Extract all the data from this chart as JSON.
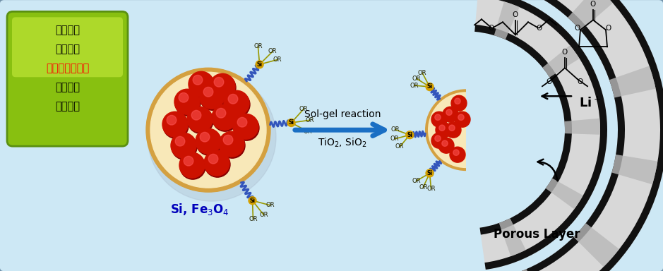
{
  "bg_color": "#cde8f5",
  "border_color": "#90b0c8",
  "box_text_lines": [
    "콴러스터",
    "임베디드",
    "마이크로캐쏘형",
    "전궹소재",
    "형성기술"
  ],
  "box_text_colors": [
    "black",
    "black",
    "red",
    "black",
    "black"
  ],
  "label_si_fe": "Si, Fe$_3$O$_4$",
  "arrow_text1": "Sol-gel reaction",
  "arrow_text2": "TiO$_2$, SiO$_2$",
  "label_porous": "Porous Layer",
  "label_li": "Li$^+$",
  "capsule_bg": "#f8e8b8",
  "capsule_border": "#d4a040",
  "ball_color": "#cc1100",
  "arrow_color": "#1a6fc4",
  "porous_black": "#111111",
  "porous_gray": "#d8d8d8"
}
